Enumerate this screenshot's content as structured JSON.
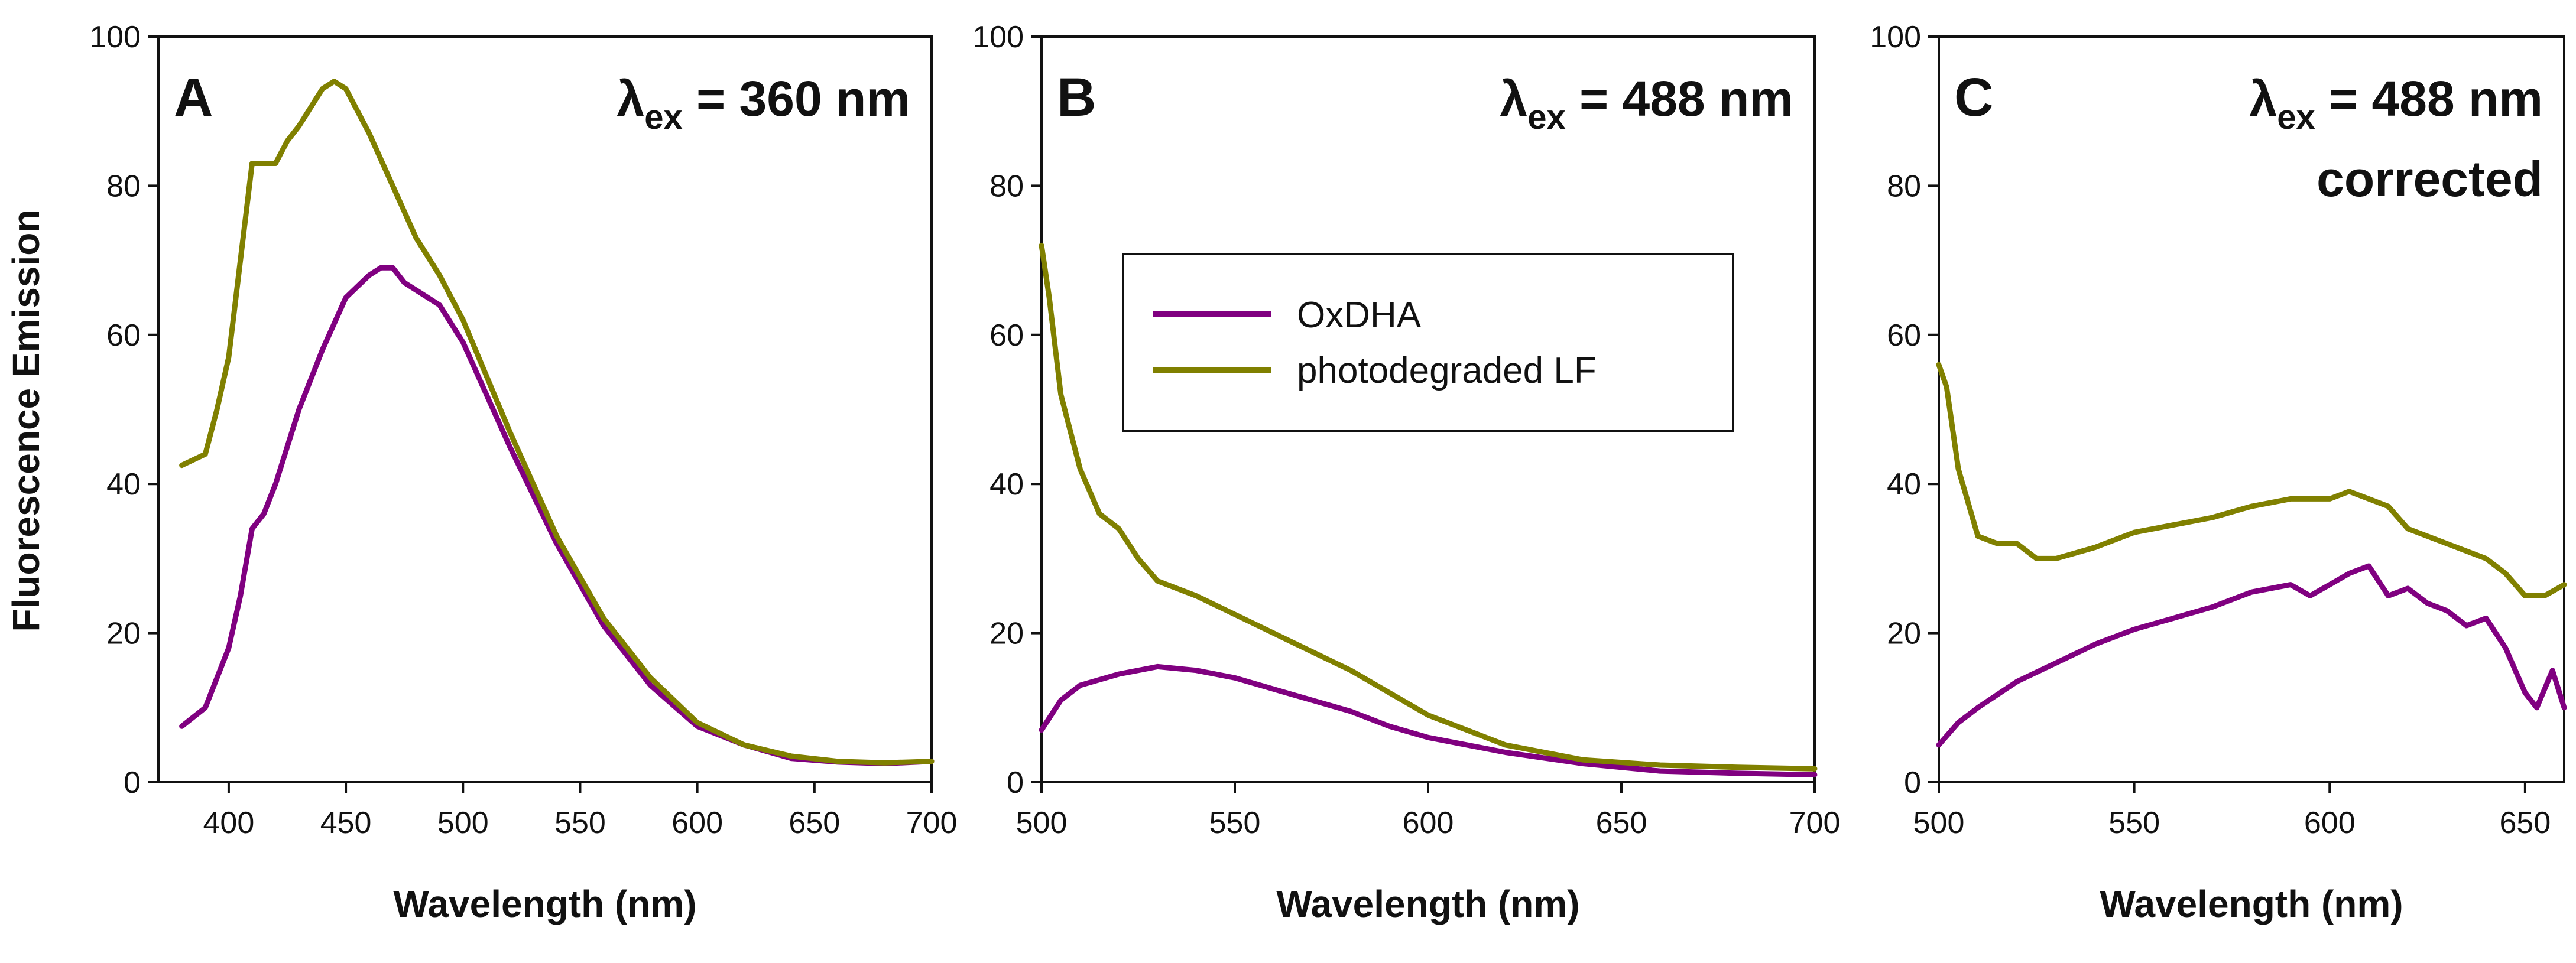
{
  "figure": {
    "ylabel": "Fluorescence Emission",
    "legend": [
      {
        "label": "OxDHA",
        "color": "#800080"
      },
      {
        "label": "photodegraded LF",
        "color": "#808000"
      }
    ]
  },
  "chart_data": [
    {
      "type": "line",
      "panel": "A",
      "annotation": {
        "prefix": "λ",
        "sub": "ex",
        "suffix": " = 360 nm",
        "line2": ""
      },
      "xlabel": "Wavelength (nm)",
      "ylabel": "Fluorescence Emission",
      "xlim": [
        370,
        700
      ],
      "ylim": [
        0,
        100
      ],
      "xticks": [
        400,
        450,
        500,
        550,
        600,
        650,
        700
      ],
      "yticks": [
        0,
        20,
        40,
        60,
        80,
        100
      ],
      "series": [
        {
          "name": "OxDHA",
          "color": "#800080",
          "x": [
            380,
            390,
            400,
            405,
            410,
            415,
            420,
            425,
            430,
            440,
            450,
            460,
            465,
            470,
            475,
            480,
            490,
            500,
            510,
            520,
            540,
            560,
            580,
            600,
            620,
            640,
            660,
            680,
            700
          ],
          "y": [
            7.5,
            10,
            18,
            25,
            34,
            36,
            40,
            45,
            50,
            58,
            65,
            68,
            69,
            69,
            67,
            66,
            64,
            59,
            52,
            45,
            32,
            21,
            13,
            7.5,
            5,
            3.2,
            2.7,
            2.5,
            2.8
          ]
        },
        {
          "name": "photodegraded LF",
          "color": "#808000",
          "x": [
            380,
            390,
            395,
            400,
            405,
            410,
            415,
            420,
            425,
            430,
            440,
            445,
            450,
            460,
            470,
            480,
            490,
            500,
            520,
            540,
            560,
            580,
            600,
            620,
            640,
            660,
            680,
            700
          ],
          "y": [
            42.5,
            44,
            50,
            57,
            70,
            83,
            83,
            83,
            86,
            88,
            93,
            94,
            93,
            87,
            80,
            73,
            68,
            62,
            47,
            33,
            22,
            14,
            8,
            5,
            3.5,
            2.8,
            2.6,
            2.8
          ]
        }
      ]
    },
    {
      "type": "line",
      "panel": "B",
      "annotation": {
        "prefix": "λ",
        "sub": "ex",
        "suffix": " = 488 nm",
        "line2": ""
      },
      "xlabel": "Wavelength (nm)",
      "xlim": [
        500,
        700
      ],
      "ylim": [
        0,
        100
      ],
      "xticks": [
        500,
        550,
        600,
        650,
        700
      ],
      "yticks": [
        0,
        20,
        40,
        60,
        80,
        100
      ],
      "series": [
        {
          "name": "OxDHA",
          "color": "#800080",
          "x": [
            500,
            505,
            510,
            520,
            530,
            540,
            550,
            560,
            570,
            580,
            590,
            600,
            620,
            640,
            660,
            680,
            700
          ],
          "y": [
            7,
            11,
            13,
            14.5,
            15.5,
            15,
            14,
            12.5,
            11,
            9.5,
            7.5,
            6,
            4,
            2.5,
            1.5,
            1.2,
            1
          ]
        },
        {
          "name": "photodegraded LF",
          "color": "#808000",
          "x": [
            500,
            502,
            505,
            510,
            515,
            520,
            525,
            530,
            540,
            550,
            560,
            570,
            580,
            590,
            600,
            620,
            640,
            660,
            680,
            700
          ],
          "y": [
            72,
            65,
            52,
            42,
            36,
            34,
            30,
            27,
            25,
            22.5,
            20,
            17.5,
            15,
            12,
            9,
            5,
            3,
            2.3,
            2,
            1.8
          ]
        }
      ]
    },
    {
      "type": "line",
      "panel": "C",
      "annotation": {
        "prefix": "λ",
        "sub": "ex",
        "suffix": " = 488 nm",
        "line2": "corrected"
      },
      "xlabel": "Wavelength (nm)",
      "xlim": [
        500,
        660
      ],
      "ylim": [
        0,
        100
      ],
      "xticks": [
        500,
        550,
        600,
        650
      ],
      "yticks": [
        0,
        20,
        40,
        60,
        80,
        100
      ],
      "series": [
        {
          "name": "OxDHA",
          "color": "#800080",
          "x": [
            500,
            505,
            510,
            520,
            530,
            540,
            550,
            560,
            570,
            580,
            590,
            595,
            600,
            605,
            610,
            615,
            620,
            625,
            630,
            635,
            640,
            645,
            650,
            653,
            657,
            660
          ],
          "y": [
            5,
            8,
            10,
            13.5,
            16,
            18.5,
            20.5,
            22,
            23.5,
            25.5,
            26.5,
            25,
            26.5,
            28,
            29,
            25,
            26,
            24,
            23,
            21,
            22,
            18,
            12,
            10,
            15,
            10
          ]
        },
        {
          "name": "photodegraded LF",
          "color": "#808000",
          "x": [
            500,
            502,
            505,
            510,
            515,
            520,
            525,
            530,
            540,
            550,
            560,
            570,
            580,
            590,
            600,
            605,
            610,
            615,
            620,
            630,
            640,
            645,
            650,
            655,
            660
          ],
          "y": [
            56,
            53,
            42,
            33,
            32,
            32,
            30,
            30,
            31.5,
            33.5,
            34.5,
            35.5,
            37,
            38,
            38,
            39,
            38,
            37,
            34,
            32,
            30,
            28,
            25,
            25,
            26.5
          ]
        }
      ]
    }
  ]
}
